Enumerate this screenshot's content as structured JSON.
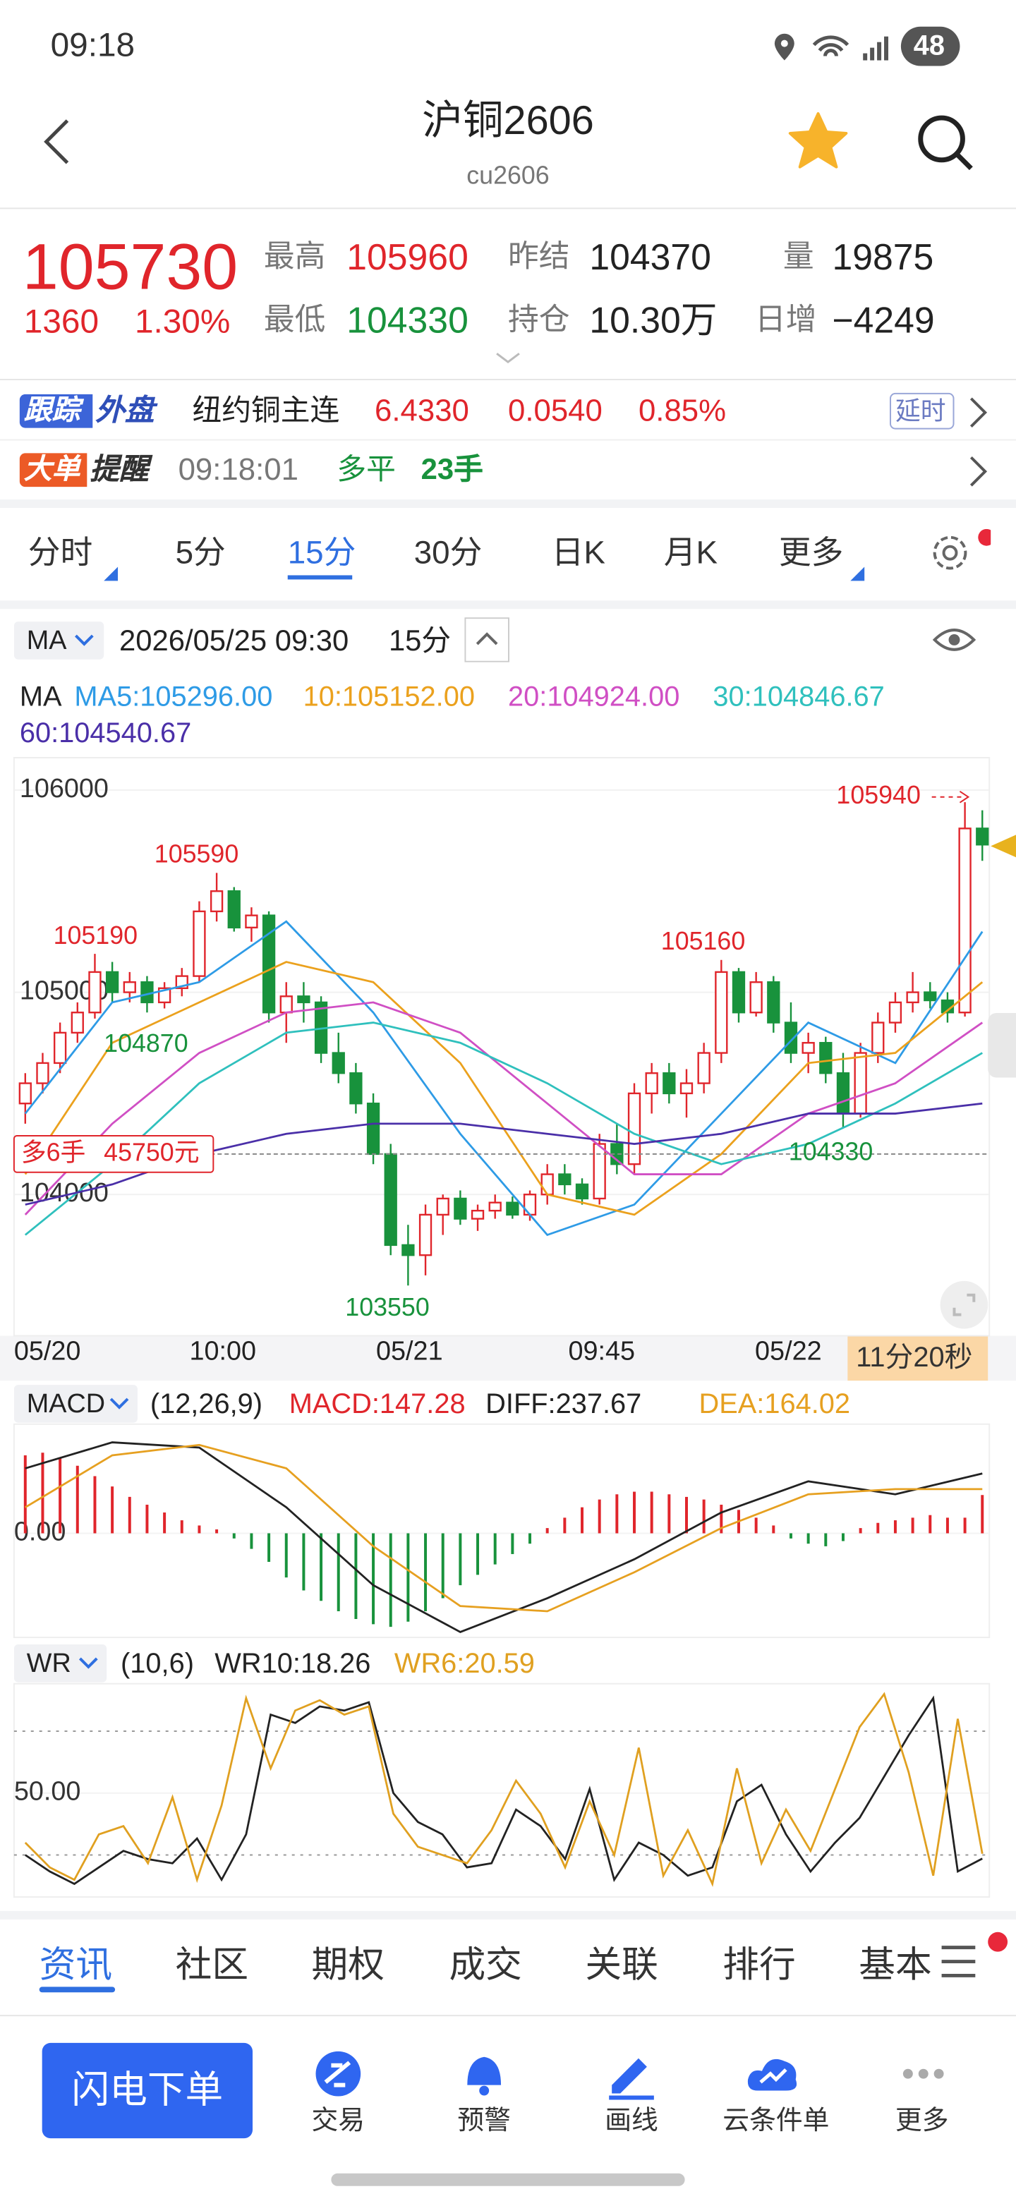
{
  "status_bar": {
    "time": "09:18",
    "battery": "48"
  },
  "header": {
    "title": "沪铜2606",
    "subtitle": "cu2606"
  },
  "quote": {
    "price": 105730,
    "change": 1360,
    "change_pct": "1.30%",
    "stats": [
      {
        "label": "最高",
        "value": 105960
      },
      {
        "label": "昨结",
        "value": 104370
      },
      {
        "label": "量",
        "value": 19875
      },
      {
        "label": "最低",
        "value": 104330
      },
      {
        "label": "持仓",
        "value": "10.30万"
      },
      {
        "label": "日增",
        "value": "−4249"
      }
    ]
  },
  "external": {
    "badge": [
      "跟踪",
      "外盘"
    ],
    "name": "纽约铜主连",
    "price": "6.4330",
    "change": "0.0540",
    "change_pct": "0.85%",
    "tag": "延时"
  },
  "alert": {
    "badge": [
      "大单",
      "提醒"
    ],
    "time": "09:18:01",
    "action": "多平",
    "size": "23手"
  },
  "period_tabs": {
    "items": [
      "分时",
      "5分",
      "15分",
      "30分",
      "日K",
      "月K",
      "更多"
    ],
    "active": 2
  },
  "chart_header": {
    "indicator": "MA",
    "datetime": "2026/05/25 09:30",
    "period": "15分"
  },
  "kline": {
    "ma": [
      {
        "label": "MA5:",
        "current": {
          "value": 105296,
          "label": "105296.00"
        },
        "color": "#2e9be6",
        "values": [
          104400,
          104950,
          105050,
          105350,
          104900,
          104300,
          103800,
          103950,
          104400,
          104850,
          104650,
          105300
        ]
      },
      {
        "label": "10:",
        "current": {
          "value": 105152,
          "label": "105152.00"
        },
        "color": "#eba11d",
        "values": [
          104100,
          104750,
          104950,
          105150,
          105050,
          104650,
          104000,
          103900,
          104200,
          104650,
          104700,
          105050
        ]
      },
      {
        "label": "20:",
        "current": {
          "value": 104924,
          "label": "104924.00"
        },
        "color": "#d04fc4",
        "values": [
          103900,
          104350,
          104700,
          104900,
          104950,
          104800,
          104450,
          104100,
          104100,
          104400,
          104550,
          104850
        ]
      },
      {
        "label": "30:",
        "current": {
          "value": 104846.67,
          "label": "104846.67"
        },
        "color": "#2fc0bd",
        "values": [
          103800,
          104150,
          104550,
          104800,
          104850,
          104750,
          104550,
          104300,
          104150,
          104250,
          104450,
          104700
        ]
      },
      {
        "label": "60:",
        "current": {
          "value": 104540.67,
          "label": "104540.67"
        },
        "color": "#4a2fa8",
        "values": [
          103950,
          104050,
          104200,
          104300,
          104350,
          104350,
          104300,
          104250,
          104300,
          104400,
          104400,
          104450
        ]
      }
    ],
    "ylim": [
      103350,
      106160
    ],
    "yticks": [
      104000,
      105000,
      106000
    ],
    "up_color": "#e0252b",
    "down_color": "#18923c",
    "candles": [
      [
        104450,
        104600,
        104350,
        104550
      ],
      [
        104550,
        104700,
        104500,
        104650
      ],
      [
        104650,
        104850,
        104600,
        104800
      ],
      [
        104800,
        104950,
        104750,
        104900
      ],
      [
        104900,
        105190,
        104870,
        105100
      ],
      [
        105100,
        105150,
        104950,
        105000
      ],
      [
        105000,
        105100,
        104950,
        105050
      ],
      [
        105050,
        105080,
        104900,
        104950
      ],
      [
        104950,
        105050,
        104920,
        105020
      ],
      [
        105020,
        105120,
        104980,
        105080
      ],
      [
        105080,
        105450,
        105050,
        105400
      ],
      [
        105400,
        105590,
        105350,
        105500
      ],
      [
        105500,
        105520,
        105300,
        105320
      ],
      [
        105320,
        105420,
        105250,
        105380
      ],
      [
        105380,
        105400,
        104850,
        104900
      ],
      [
        104900,
        105050,
        104750,
        104980
      ],
      [
        104980,
        105050,
        104850,
        104950
      ],
      [
        104950,
        104980,
        104650,
        104700
      ],
      [
        104700,
        104800,
        104550,
        104600
      ],
      [
        104600,
        104650,
        104400,
        104450
      ],
      [
        104450,
        104500,
        104150,
        104200
      ],
      [
        104200,
        104250,
        103700,
        103750
      ],
      [
        103750,
        103850,
        103550,
        103700
      ],
      [
        103700,
        103950,
        103600,
        103900
      ],
      [
        103900,
        104000,
        103800,
        103980
      ],
      [
        103980,
        104020,
        103850,
        103880
      ],
      [
        103880,
        103950,
        103820,
        103920
      ],
      [
        103920,
        104000,
        103880,
        103960
      ],
      [
        103960,
        103990,
        103880,
        103900
      ],
      [
        103900,
        104020,
        103870,
        104000
      ],
      [
        104000,
        104150,
        103950,
        104100
      ],
      [
        104100,
        104150,
        104000,
        104050
      ],
      [
        104050,
        104080,
        103950,
        103980
      ],
      [
        103980,
        104300,
        103950,
        104250
      ],
      [
        104250,
        104350,
        104100,
        104150
      ],
      [
        104150,
        104550,
        104100,
        104500
      ],
      [
        104500,
        104650,
        104400,
        104600
      ],
      [
        104600,
        104650,
        104450,
        104500
      ],
      [
        104500,
        104620,
        104380,
        104550
      ],
      [
        104550,
        104750,
        104500,
        104700
      ],
      [
        104700,
        105160,
        104650,
        105100
      ],
      [
        105100,
        105120,
        104850,
        104900
      ],
      [
        104900,
        105100,
        104880,
        105050
      ],
      [
        105050,
        105080,
        104800,
        104850
      ],
      [
        104850,
        104950,
        104650,
        104700
      ],
      [
        104700,
        104800,
        104600,
        104750
      ],
      [
        104750,
        104780,
        104550,
        104600
      ],
      [
        104600,
        104700,
        104330,
        104400
      ],
      [
        104400,
        104750,
        104380,
        104700
      ],
      [
        104700,
        104900,
        104650,
        104850
      ],
      [
        104850,
        105000,
        104800,
        104950
      ],
      [
        104950,
        105100,
        104900,
        105000
      ],
      [
        105000,
        105050,
        104920,
        104960
      ],
      [
        104960,
        105000,
        104850,
        104900
      ],
      [
        104900,
        105940,
        104880,
        105810
      ],
      [
        105810,
        105900,
        105650,
        105730
      ]
    ],
    "annotations": [
      105940,
      105590,
      105190,
      104870,
      105160,
      103550,
      104330
    ],
    "order_line": {
      "value": 104200,
      "label": "多6手",
      "amount": "45750元"
    },
    "x_labels": [
      "05/20",
      "10:00",
      "05/21",
      "09:45",
      "05/22"
    ],
    "countdown": "11分20秒"
  },
  "macd": {
    "label": "MACD",
    "params": "(12,26,9)",
    "ylim": [
      -390,
      420
    ],
    "yticks": [
      {
        "value": 0,
        "label": "0.00"
      }
    ],
    "series": [
      {
        "label": "MACD:",
        "current": 147.28,
        "up_color": "#e0252b",
        "down_color": "#18923c",
        "values": [
          300,
          310,
          290,
          260,
          220,
          180,
          140,
          110,
          80,
          50,
          30,
          15,
          -20,
          -60,
          -110,
          -170,
          -220,
          -260,
          -300,
          -330,
          -350,
          -360,
          -340,
          -300,
          -250,
          -200,
          -160,
          -120,
          -80,
          -40,
          20,
          60,
          100,
          130,
          150,
          160,
          160,
          150,
          140,
          130,
          110,
          90,
          60,
          30,
          -20,
          -40,
          -50,
          -30,
          20,
          40,
          50,
          60,
          70,
          60,
          60,
          147.28
        ]
      },
      {
        "label": "DIFF:",
        "current": 237.67,
        "color": "#222222",
        "values": [
          250,
          350,
          330,
          100,
          -200,
          -380,
          -250,
          -100,
          80,
          200,
          150,
          230
        ]
      },
      {
        "label": "DEA:",
        "current": 164.02,
        "color": "#e6a020",
        "values": [
          100,
          300,
          340,
          250,
          -50,
          -280,
          -300,
          -150,
          20,
          150,
          170,
          170
        ]
      }
    ]
  },
  "wr": {
    "label": "WR",
    "params": "(10,6)",
    "ylim": [
      1,
      103
    ],
    "yticks": [
      {
        "value": 50,
        "label": "50.00"
      }
    ],
    "ref_lines": [
      80,
      20
    ],
    "series": [
      {
        "label": "WR10:",
        "current": 18.26,
        "color": "#222222",
        "values": [
          20,
          12,
          6,
          14,
          22,
          18,
          16,
          28,
          8,
          30,
          88,
          84,
          92,
          90,
          94,
          50,
          36,
          30,
          14,
          16,
          42,
          34,
          18,
          52,
          8,
          26,
          20,
          10,
          14,
          46,
          54,
          30,
          12,
          26,
          38,
          58,
          78,
          96,
          12,
          18.26
        ]
      },
      {
        "label": "WR6:",
        "current": 20.59,
        "color": "#e0a020",
        "values": [
          26,
          14,
          8,
          30,
          34,
          16,
          48,
          8,
          44,
          96,
          62,
          90,
          95,
          88,
          92,
          40,
          24,
          20,
          16,
          32,
          56,
          40,
          14,
          46,
          20,
          72,
          10,
          32,
          6,
          62,
          16,
          42,
          22,
          52,
          82,
          98,
          60,
          10,
          86,
          20.59
        ]
      }
    ]
  },
  "bottom_tabs": {
    "items": [
      "资讯",
      "社区",
      "期权",
      "成交",
      "关联",
      "排行",
      "基本"
    ],
    "active": 0
  },
  "action_bar": {
    "button": "闪电下单",
    "items": [
      "交易",
      "预警",
      "画线",
      "云条件单",
      "更多"
    ]
  }
}
